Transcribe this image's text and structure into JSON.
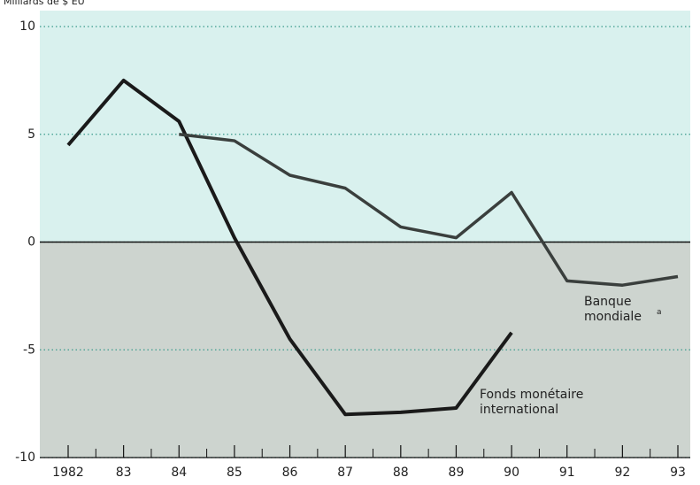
{
  "chart_data": {
    "type": "line",
    "y_label": "Milliards de $ EU",
    "categories": [
      "1982",
      "83",
      "84",
      "85",
      "86",
      "87",
      "88",
      "89",
      "90",
      "91",
      "92",
      "93"
    ],
    "series": [
      {
        "name": "Fonds monétaire international",
        "color": "#1a1a1a",
        "values": [
          4.5,
          7.5,
          5.6,
          0.2,
          -4.5,
          -8.0,
          -7.9,
          -7.7,
          -4.2,
          null,
          null,
          null
        ]
      },
      {
        "name": "Banque mondiale",
        "color": "#3a3f3d",
        "values": [
          null,
          null,
          5.0,
          4.7,
          3.1,
          2.5,
          0.7,
          0.2,
          2.3,
          -1.8,
          -2.0,
          -1.6
        ]
      }
    ],
    "series_note": "a",
    "ylim": [
      -10,
      10
    ],
    "yticks": [
      -10,
      -5,
      0,
      5,
      10
    ],
    "grid": true
  }
}
